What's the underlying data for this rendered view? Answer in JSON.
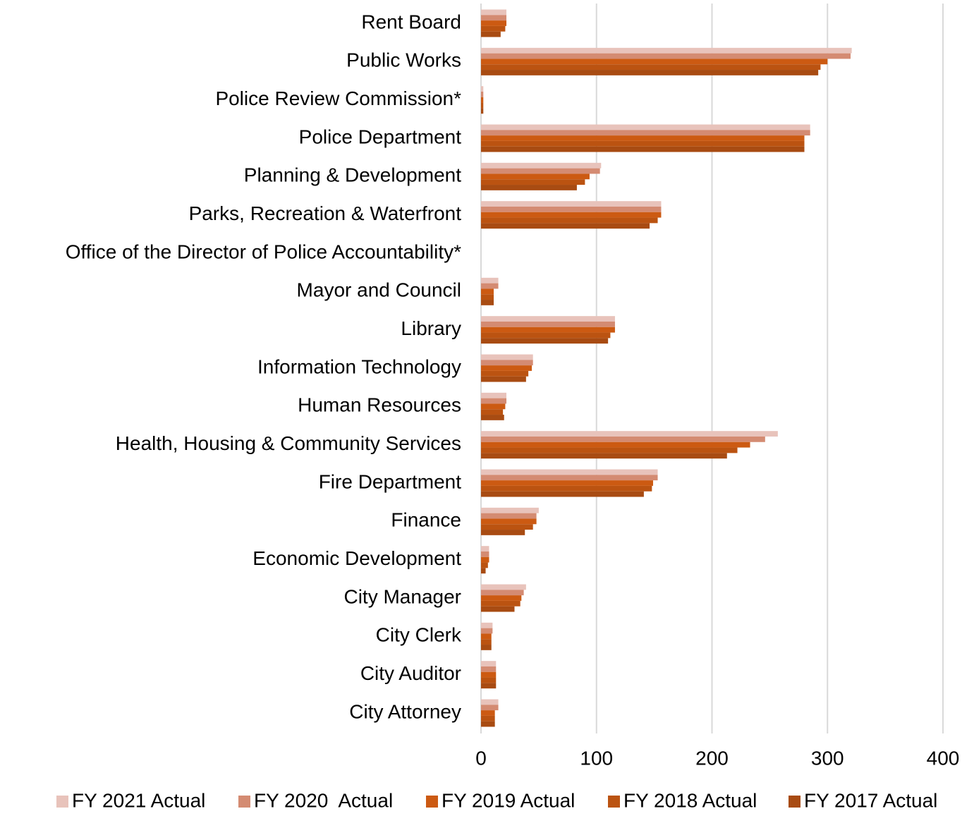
{
  "chart_data": {
    "type": "hbar",
    "categories": [
      "Rent Board",
      "Public Works",
      "Police Review Commission*",
      "Police Department",
      "Planning & Development",
      "Parks, Recreation & Waterfront",
      "Office of the Director of Police Accountability*",
      "Mayor and Council",
      "Library",
      "Information Technology",
      "Human Resources",
      "Health, Housing & Community Services",
      "Fire Department",
      "Finance",
      "Economic Development",
      "City Manager",
      "City Clerk",
      "City Auditor",
      "City Attorney"
    ],
    "series": [
      {
        "name": "FY 2021 Actual",
        "color": "#e8c3bb",
        "values": [
          22,
          321,
          2,
          285,
          104,
          156,
          0,
          15,
          116,
          45,
          22,
          257,
          153,
          50,
          7,
          39,
          10,
          13,
          15
        ]
      },
      {
        "name": "FY 2020  Actual",
        "color": "#d48b72",
        "values": [
          22,
          320,
          2,
          285,
          103,
          156,
          0,
          15,
          116,
          45,
          22,
          246,
          153,
          48,
          7,
          37,
          10,
          13,
          15
        ]
      },
      {
        "name": "FY 2019 Actual",
        "color": "#cc5a12",
        "values": [
          22,
          300,
          2,
          280,
          94,
          156,
          0,
          11,
          116,
          44,
          21,
          233,
          149,
          48,
          7,
          35,
          9,
          13,
          12
        ]
      },
      {
        "name": "FY 2018 Actual",
        "color": "#bb5311",
        "values": [
          21,
          294,
          2,
          280,
          90,
          153,
          0,
          11,
          112,
          41,
          19,
          222,
          148,
          45,
          6,
          34,
          9,
          13,
          12
        ]
      },
      {
        "name": "FY 2017 Actual",
        "color": "#a84b12",
        "values": [
          17,
          292,
          2,
          280,
          83,
          146,
          0,
          11,
          110,
          39,
          20,
          213,
          141,
          38,
          4,
          29,
          9,
          13,
          12
        ]
      }
    ],
    "xlim": [
      0,
      400
    ],
    "xticks": [
      0,
      100,
      200,
      300,
      400
    ],
    "grid": true,
    "legend": "bottom"
  }
}
